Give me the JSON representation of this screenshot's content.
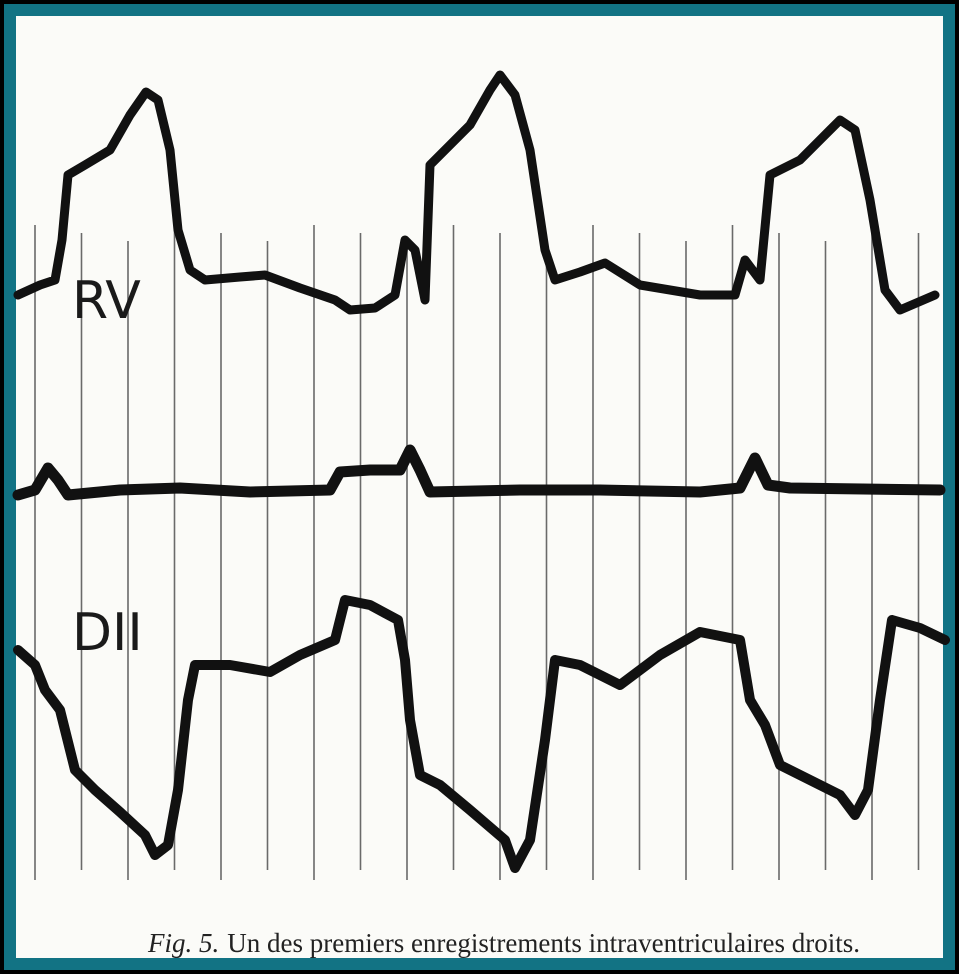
{
  "figure": {
    "trace_labels": [
      "RV",
      "DII"
    ],
    "caption": {
      "label": "Fig. 5.",
      "text": "Un des premiers enregistrements intraventriculaires droits."
    }
  }
}
